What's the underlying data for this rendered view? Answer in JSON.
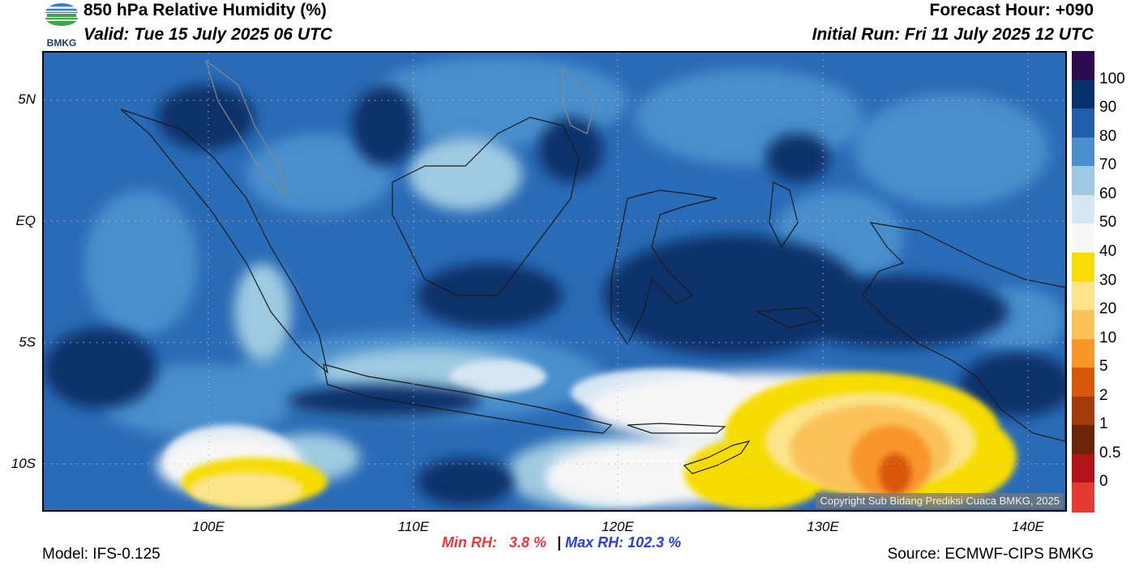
{
  "header": {
    "title": "850 hPa Relative Humidity (%)",
    "valid": "Valid: Tue 15 July 2025 06 UTC",
    "forecast_hour": "Forecast Hour: +090",
    "initial_run": "Initial Run: Fri 11 July 2025 12 UTC"
  },
  "logo": {
    "text": "BMKG",
    "icon": "bmkg-logo-icon"
  },
  "map": {
    "lat_labels": [
      "5N",
      "EQ",
      "5S",
      "10S"
    ],
    "lon_labels": [
      "100E",
      "110E",
      "120E",
      "130E",
      "140E"
    ],
    "copyright": "Copyright Sub Bidang Prediksi Cuaca BMKG, 2025"
  },
  "colorbar": {
    "labels": [
      "100",
      "90",
      "80",
      "70",
      "60",
      "50",
      "40",
      "30",
      "20",
      "10",
      "5",
      "2",
      "1",
      "0.5",
      "0"
    ],
    "colors": [
      "#2b0a4e",
      "#08306b",
      "#1f5fae",
      "#4a8fcc",
      "#9ecae1",
      "#d6e6f2",
      "#f7f7f7",
      "#f7dc06",
      "#fbe48a",
      "#fbc25a",
      "#f8962a",
      "#d9570a",
      "#a33b0c",
      "#6a240a",
      "#b3141b",
      "#e23a32"
    ]
  },
  "stats": {
    "min_label": "Min RH:",
    "min_value": "3.8 %",
    "separator": "|",
    "max_label": "Max RH:",
    "max_value": "102.3 %"
  },
  "footer": {
    "model": "Model: IFS-0.125",
    "source": "Source: ECMWF-CIPS BMKG"
  }
}
